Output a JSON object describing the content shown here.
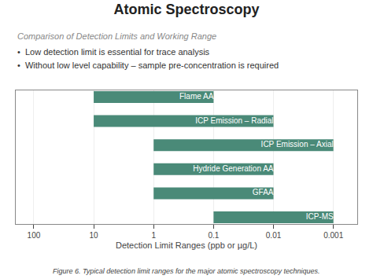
{
  "chart_data": {
    "type": "bar",
    "orientation": "horizontal",
    "title": "Atomic Spectroscopy",
    "subtitle": "Comparison of Detection Limits and Working Range",
    "annotations": [
      "•  Low detection limit is essential for trace analysis",
      "•  Without low level capability – sample pre-concentration is required"
    ],
    "caption": "Figure 6. Typical detection limit ranges for the major atomic spectroscopy techniques.",
    "xlabel": "Detection Limit Ranges (ppb or µg/L)",
    "categories": [
      "Flame AA",
      "ICP Emission – Radial",
      "ICP Emission – Axial",
      "Hydride Generation AA",
      "GFAA",
      "ICP-MS"
    ],
    "values": [
      [
        10,
        0.1
      ],
      [
        10,
        0.01
      ],
      [
        1,
        0.001
      ],
      [
        1,
        0.01
      ],
      [
        1,
        0.01
      ],
      [
        0.1,
        0.001
      ]
    ],
    "color": "#4a8a78",
    "log": "x",
    "xlim": [
      200,
      0.0004
    ],
    "xticks": [
      100,
      10,
      1,
      0.1,
      0.01,
      0.001
    ],
    "grid": true,
    "tick_labels": "x"
  }
}
